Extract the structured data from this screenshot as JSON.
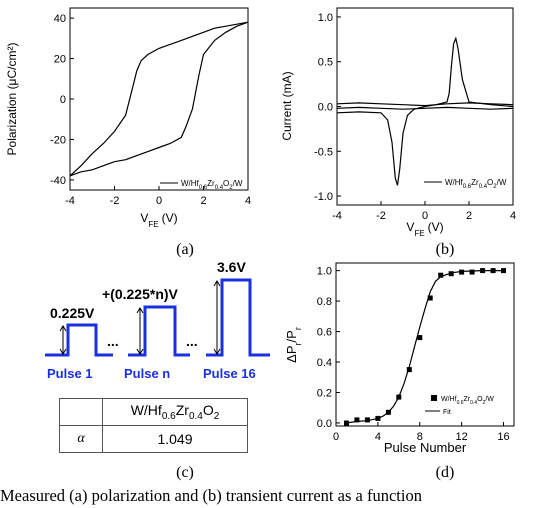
{
  "chart_data": [
    {
      "id": "a",
      "type": "line",
      "panel_label": "(a)",
      "xlabel": "V",
      "xlabel_sub": "FE",
      "xlabel_unit": "(V)",
      "ylabel": "Polarization (μC/cm²)",
      "xlim": [
        -4,
        4
      ],
      "ylim": [
        -45,
        45
      ],
      "xticks": [
        "-4",
        "-2",
        "0",
        "2",
        "4"
      ],
      "yticks": [
        "-40",
        "-20",
        "0",
        "20",
        "40"
      ],
      "legend": {
        "position": "bottom-right",
        "label": "W/Hf0.6Zr0.4O2/W"
      },
      "series": [
        {
          "x": [
            -4,
            -3.5,
            -3,
            -2.5,
            -2,
            -1.5,
            -1.2,
            -1,
            -0.8,
            -0.5,
            0,
            0.5,
            1,
            1.5,
            2,
            2.5,
            3,
            3.5,
            4
          ],
          "y": [
            -38,
            -33,
            -27,
            -22,
            -16,
            -8,
            5,
            14,
            19,
            22,
            25,
            27,
            29,
            31,
            33,
            35,
            36,
            37,
            38
          ]
        },
        {
          "x": [
            4,
            3.5,
            3,
            2.5,
            2,
            1.8,
            1.5,
            1.2,
            1,
            0.5,
            0,
            -0.5,
            -1,
            -1.5,
            -2,
            -2.5,
            -3,
            -3.5,
            -4
          ],
          "y": [
            38,
            36,
            33,
            29,
            22,
            12,
            -5,
            -14,
            -19,
            -22,
            -24,
            -26,
            -28,
            -30,
            -31,
            -33,
            -35,
            -36,
            -38
          ]
        }
      ]
    },
    {
      "id": "b",
      "type": "line",
      "panel_label": "(b)",
      "xlabel": "V",
      "xlabel_sub": "FE",
      "xlabel_unit": "(V)",
      "ylabel": "Current (mA)",
      "xlim": [
        -4,
        4
      ],
      "ylim": [
        -1.1,
        1.1
      ],
      "xticks": [
        "-4",
        "-2",
        "0",
        "2",
        "4"
      ],
      "yticks": [
        "-1.0",
        "-0.5",
        "0.0",
        "0.5",
        "1.0"
      ],
      "legend": {
        "position": "bottom-right",
        "label": "W/Hf0.6Zr0.4O2/W"
      },
      "series": [
        {
          "x": [
            -4,
            -3,
            -2,
            -1.7,
            -1.5,
            -1.35,
            -1.25,
            -1.15,
            -1,
            -0.8,
            -0.5,
            0,
            0.5,
            1,
            1.1,
            1.2,
            1.3,
            1.4,
            1.5,
            1.7,
            2,
            3,
            4
          ],
          "y": [
            -0.07,
            -0.06,
            -0.07,
            -0.15,
            -0.4,
            -0.8,
            -0.88,
            -0.7,
            -0.3,
            -0.1,
            -0.03,
            0,
            0.02,
            0.05,
            0.15,
            0.45,
            0.7,
            0.76,
            0.65,
            0.3,
            0.05,
            0.02,
            0
          ]
        },
        {
          "x": [
            -4,
            -3,
            -2,
            -1,
            0,
            1,
            2,
            3,
            4
          ],
          "y": [
            0.03,
            0.04,
            0.03,
            0.02,
            0.01,
            0.03,
            0.04,
            0.03,
            0.02
          ]
        },
        {
          "x": [
            -4,
            -3,
            -2,
            -1,
            0,
            1,
            2,
            3,
            4
          ],
          "y": [
            -0.02,
            -0.01,
            -0.02,
            -0.03,
            -0.02,
            -0.01,
            -0.02,
            -0.03,
            -0.02
          ]
        }
      ]
    },
    {
      "id": "d",
      "type": "scatter",
      "panel_label": "(d)",
      "xlabel": "Pulse Number",
      "ylabel": "ΔP/P",
      "xlim": [
        0,
        17
      ],
      "ylim": [
        -0.02,
        1.05
      ],
      "xticks": [
        "0",
        "4",
        "8",
        "12",
        "16"
      ],
      "yticks": [
        "0.0",
        "0.2",
        "0.4",
        "0.6",
        "0.8",
        "1.0"
      ],
      "legend": {
        "position": "bottom-right",
        "marker_label": "W/Hf0.6Zr0.4O2/W",
        "line_label": "Fit"
      },
      "x": [
        1,
        2,
        3,
        4,
        5,
        6,
        7,
        8,
        9,
        10,
        11,
        12,
        13,
        14,
        15,
        16
      ],
      "y": [
        0.0,
        0.02,
        0.02,
        0.03,
        0.07,
        0.17,
        0.35,
        0.56,
        0.82,
        0.97,
        0.98,
        0.99,
        0.99,
        1.0,
        1.0,
        1.0
      ],
      "fit": {
        "x": [
          1,
          2,
          3,
          4,
          4.5,
          5,
          5.5,
          6,
          6.5,
          7,
          7.5,
          8,
          8.5,
          9,
          9.5,
          10,
          11,
          12,
          14,
          16
        ],
        "y": [
          0.0,
          0.01,
          0.015,
          0.03,
          0.045,
          0.07,
          0.11,
          0.17,
          0.26,
          0.37,
          0.5,
          0.63,
          0.75,
          0.86,
          0.93,
          0.96,
          0.985,
          0.995,
          1.0,
          1.0
        ]
      }
    }
  ],
  "pulses": {
    "panel_label": "(c)",
    "amplitudes": [
      "0.225V",
      "+(0.225*n)V",
      "3.6V"
    ],
    "labels": [
      "Pulse 1",
      "Pulse n",
      "Pulse 16"
    ],
    "ellipsis": "...",
    "color": "#1a2fe0"
  },
  "alpha_table": {
    "header": "W/Hf0.6Zr0.4O2",
    "row_label": "α",
    "value": "1.049"
  },
  "caption": "Measured (a) polarization and (b) transient current as a function"
}
